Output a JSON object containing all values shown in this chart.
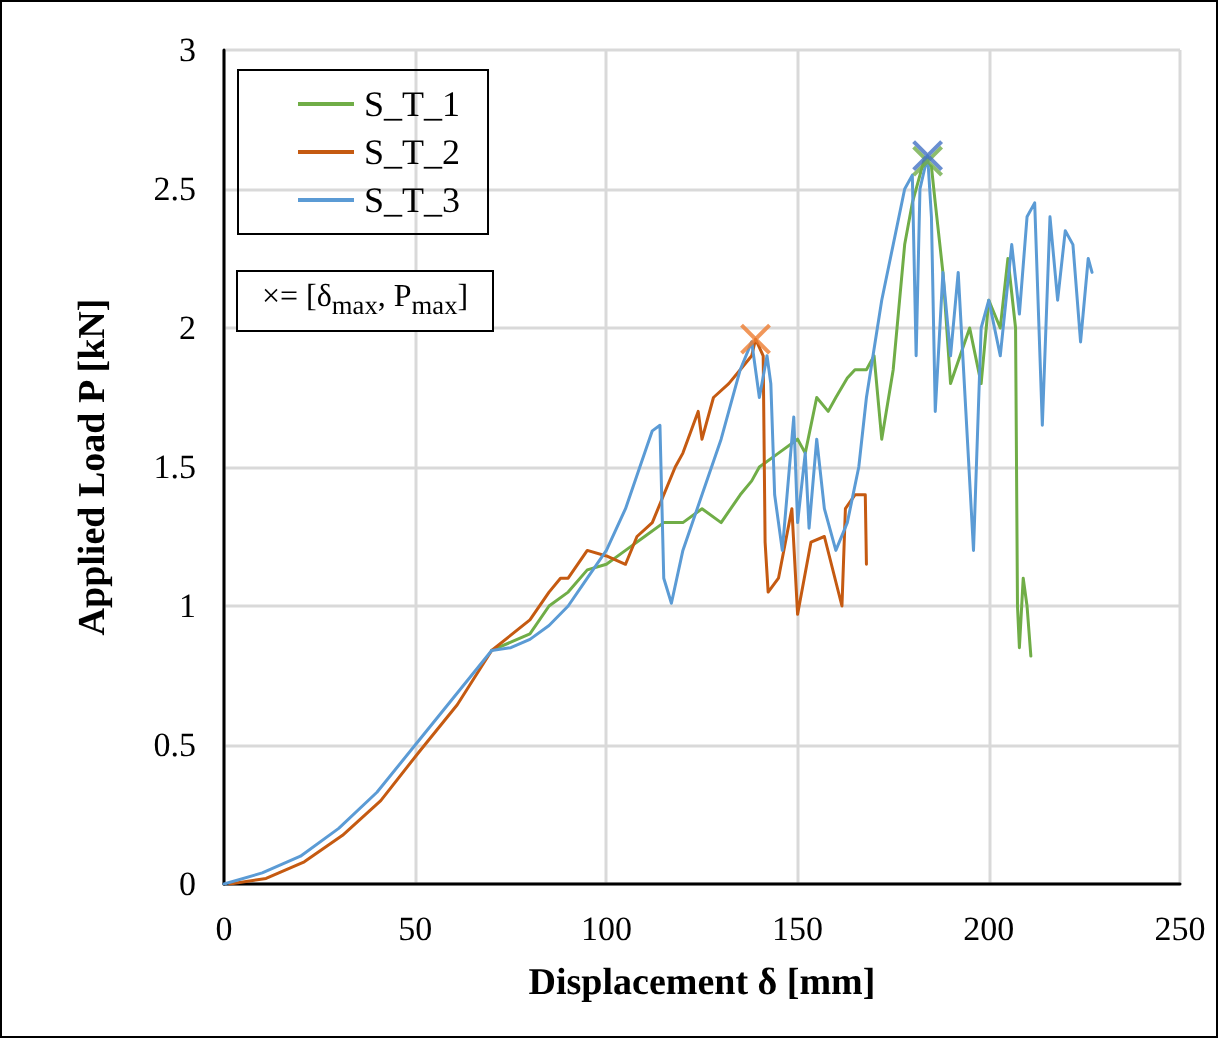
{
  "chart_data": {
    "type": "line",
    "xlabel": "Displacement δ [mm]",
    "ylabel": "Applied Load P [kN]",
    "xlim": [
      0,
      250
    ],
    "xticks": [
      0,
      50,
      100,
      150,
      200,
      250
    ],
    "ylim": [
      0,
      3
    ],
    "yticks": [
      0,
      0.5,
      1,
      1.5,
      2,
      2.5,
      3
    ],
    "grid": true,
    "legend": "top left",
    "marker": "none",
    "line_style": "solid",
    "annotations": [
      "×= [δ$_{max}$, P$_{max}$]"
    ],
    "series": [
      {
        "name": "S_T_1",
        "color": "#70ad47",
        "x": [
          70,
          75,
          80,
          85,
          90,
          95,
          100,
          105,
          110,
          115,
          120,
          125,
          130,
          135,
          138,
          140,
          145,
          150,
          152,
          155,
          158,
          160,
          163,
          165,
          168,
          170,
          172,
          175,
          178,
          180,
          183,
          185,
          186,
          188,
          190,
          195,
          198,
          200,
          203,
          205,
          207,
          207.5,
          208,
          209,
          210,
          211
        ],
        "values": [
          0.84,
          0.87,
          0.9,
          1.0,
          1.05,
          1.13,
          1.15,
          1.2,
          1.25,
          1.3,
          1.3,
          1.35,
          1.3,
          1.4,
          1.45,
          1.5,
          1.55,
          1.6,
          1.55,
          1.75,
          1.7,
          1.75,
          1.82,
          1.85,
          1.85,
          1.9,
          1.6,
          1.85,
          2.3,
          2.45,
          2.6,
          2.58,
          2.45,
          2.2,
          1.8,
          2.0,
          1.8,
          2.1,
          2.0,
          2.25,
          2.0,
          1.0,
          0.85,
          1.1,
          1.0,
          0.82
        ]
      },
      {
        "name": "S_T_2",
        "color": "#c55a11",
        "x": [
          1.5,
          11,
          21,
          31,
          41,
          51,
          61,
          70,
          80,
          85,
          88,
          90,
          95,
          100,
          105,
          108,
          112,
          118,
          120,
          124,
          125,
          128,
          132,
          135,
          138,
          139,
          140,
          141,
          141.5,
          142.3,
          145,
          148.5,
          150,
          153.5,
          157,
          161.6,
          162.5,
          165,
          167.7,
          168
        ],
        "values": [
          0,
          0.02,
          0.08,
          0.175,
          0.3,
          0.475,
          0.645,
          0.84,
          0.95,
          1.05,
          1.1,
          1.1,
          1.2,
          1.18,
          1.15,
          1.25,
          1.3,
          1.5,
          1.55,
          1.7,
          1.6,
          1.75,
          1.8,
          1.85,
          1.9,
          1.96,
          1.93,
          1.9,
          1.23,
          1.05,
          1.1,
          1.35,
          0.97,
          1.23,
          1.25,
          1.0,
          1.35,
          1.4,
          1.4,
          1.15
        ]
      },
      {
        "name": "S_T_3",
        "color": "#5b9bd5",
        "x": [
          0,
          10,
          20,
          30,
          40,
          50,
          60,
          70,
          75,
          80,
          85,
          90,
          95,
          100,
          105,
          110,
          112,
          114,
          115,
          117,
          120,
          125,
          130,
          135,
          138,
          140,
          142,
          143,
          144,
          146,
          149,
          150,
          152,
          153,
          155,
          157,
          160,
          163,
          166,
          168,
          172,
          175,
          178,
          180,
          181,
          182,
          184,
          185,
          186,
          188,
          190,
          192,
          194,
          196,
          198,
          200,
          203,
          206,
          208,
          210,
          212,
          214,
          216,
          218,
          220,
          222,
          224,
          226,
          227
        ],
        "values": [
          0,
          0.04,
          0.1,
          0.2,
          0.33,
          0.5,
          0.67,
          0.84,
          0.85,
          0.88,
          0.93,
          1.0,
          1.1,
          1.2,
          1.35,
          1.55,
          1.63,
          1.65,
          1.1,
          1.01,
          1.2,
          1.4,
          1.6,
          1.85,
          1.95,
          1.75,
          1.9,
          1.8,
          1.4,
          1.2,
          1.68,
          1.3,
          1.55,
          1.28,
          1.6,
          1.35,
          1.2,
          1.3,
          1.5,
          1.75,
          2.1,
          2.3,
          2.5,
          2.55,
          1.9,
          2.5,
          2.62,
          2.4,
          1.7,
          2.2,
          1.9,
          2.2,
          1.7,
          1.2,
          2.0,
          2.1,
          1.9,
          2.3,
          2.05,
          2.4,
          2.45,
          1.65,
          2.4,
          2.1,
          2.35,
          2.3,
          1.95,
          2.25,
          2.2
        ]
      },
      {
        "type": "scatter",
        "marker": "cross",
        "color": "#70ad47",
        "x": [
          184
        ],
        "values": [
          2.6
        ]
      },
      {
        "type": "scatter",
        "marker": "cross",
        "color": "#ed7d31",
        "x": [
          139
        ],
        "values": [
          1.96
        ]
      },
      {
        "type": "scatter",
        "marker": "cross",
        "color": "#4472c4",
        "x": [
          184
        ],
        "values": [
          2.62
        ]
      }
    ]
  }
}
